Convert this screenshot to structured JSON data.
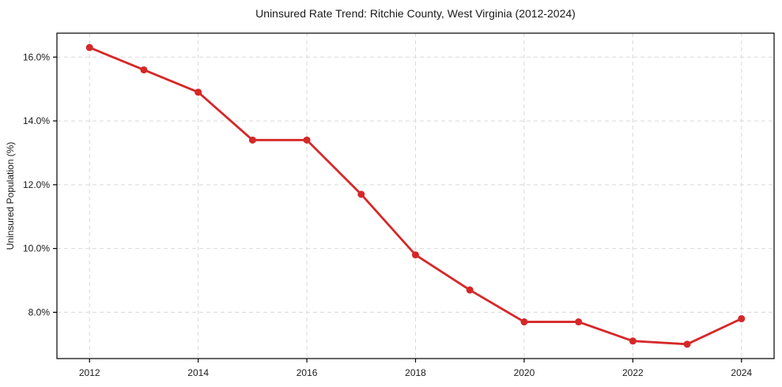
{
  "chart_data": {
    "type": "line",
    "title": "Uninsured Rate Trend: Ritchie County, West Virginia (2012-2024)",
    "xlabel": "",
    "ylabel": "Uninsured Population (%)",
    "series_name": "Uninsured rate",
    "x": [
      2012,
      2013,
      2014,
      2015,
      2016,
      2017,
      2018,
      2019,
      2020,
      2021,
      2022,
      2023,
      2024
    ],
    "values": [
      16.3,
      15.6,
      14.9,
      13.4,
      13.4,
      11.7,
      9.8,
      8.7,
      7.7,
      7.7,
      7.1,
      7.0,
      7.8
    ],
    "xlim": [
      2011.4,
      2024.6
    ],
    "ylim": [
      6.55,
      16.75
    ],
    "xticks": [
      2012,
      2014,
      2016,
      2018,
      2020,
      2022,
      2024
    ],
    "xtick_labels": [
      "2012",
      "2014",
      "2016",
      "2018",
      "2020",
      "2022",
      "2024"
    ],
    "yticks": [
      8,
      10,
      12,
      14,
      16
    ],
    "ytick_labels": [
      "8.0%",
      "10.0%",
      "12.0%",
      "14.0%",
      "16.0%"
    ],
    "grid": true,
    "grid_style": "dashed",
    "legend": "none",
    "marker": "circle",
    "colors": {
      "line": "#d62728",
      "marker": "#d62728",
      "grid": "#d9d9d9",
      "axis": "#000000",
      "text": "#1a1a1a",
      "background": "#ffffff"
    }
  }
}
